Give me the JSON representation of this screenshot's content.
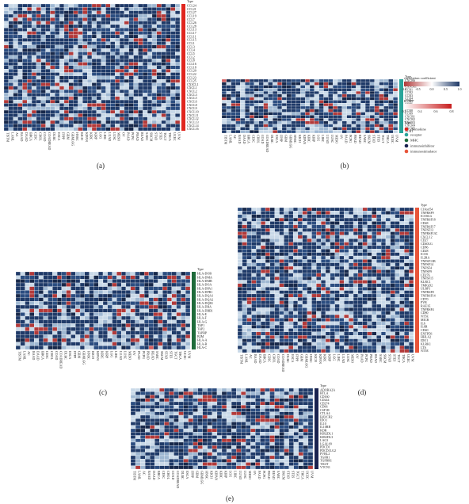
{
  "columns": [
    "TISTM",
    "LAML",
    "AC",
    "BAAD",
    "DAAD",
    "BRCA",
    "CESC",
    "CHOL",
    "COAD",
    "COADREAD",
    "DLBC",
    "ESCA",
    "FPPP",
    "GBM",
    "GBMLGG",
    "HNSC",
    "KICH",
    "KIPAN",
    "KIRC",
    "KIRP",
    "LGG",
    "LIHC",
    "LUAD",
    "LUSC",
    "MESO",
    "OV",
    "PAAD",
    "PCPG",
    "PRAD",
    "READ",
    "SARC",
    "SKCM",
    "STAD",
    "STES",
    "TGCT",
    "THCA",
    "UCEC",
    "UVM"
  ],
  "type_label": "Type",
  "panels": [
    {
      "letter": "(a)",
      "type_color": "#e0261f",
      "rows": [
        "CCL24",
        "CCL21",
        "CCL27",
        "CCL19",
        "CCL7",
        "CCL26",
        "CCL28",
        "CCL13",
        "CCL17",
        "CCL11",
        "CCL15",
        "CCL1",
        "CCL3",
        "CCL4",
        "CCL5",
        "CCL2",
        "CCL8",
        "CCL16",
        "CCL18",
        "CCL20",
        "CCL22",
        "CCL23",
        "CCL25",
        "CX3CL1",
        "CXCL1",
        "CXCL2",
        "CXCL3",
        "CXCL5",
        "CXCL6",
        "CXCL8",
        "CXCL9",
        "CXCL10",
        "CXCL11",
        "CXCL12",
        "CXCL13",
        "CXCL14",
        "CXCL16"
      ]
    },
    {
      "letter": "(b)",
      "type_color": "#2aa59a",
      "rows": [
        "CXCR6",
        "CCR10",
        "CX3CR1",
        "CCR1",
        "CCR2",
        "CCR3",
        "CCR4",
        "CCR5",
        "CCR6",
        "CCR7",
        "CCR8",
        "CCR9",
        "CXCR1",
        "CXCR2",
        "CXCR3",
        "CXCR4",
        "CXCR5",
        "XCR1"
      ]
    },
    {
      "letter": "(c)",
      "type_color": "#1e6b3a",
      "rows": [
        "HLA-DOB",
        "HLA-DMA",
        "HLA-DMB",
        "HLA-DOA",
        "HLA-DPA1",
        "HLA-DPB1",
        "HLA-DQA1",
        "HLA-DQA2",
        "HLA-DQB1",
        "HLA-DRA",
        "HLA-DRB1",
        "HLA-E",
        "HLA-F",
        "HLA-G",
        "TAP1",
        "TAP2",
        "TAPBP",
        "B2M",
        "HLA-A",
        "HLA-B",
        "HLA-C"
      ]
    },
    {
      "letter": "(d)",
      "type_color": "#e8553a",
      "rows": [
        "C10orf54",
        "TNFRSF9",
        "ICOSLG",
        "TNFRSF18",
        "CD48",
        "TNFRSF17",
        "TNFSF13",
        "TNFRSF13C",
        "CXCL12",
        "CD27",
        "CD40LG",
        "CD86",
        "CD28",
        "ICOS",
        "IL2RA",
        "TNFSF13B",
        "TNFSF14",
        "TNFSF4",
        "TNFSF9",
        "CD276",
        "TNFSF15",
        "KLRC1",
        "TMIGD2",
        "ULBP1",
        "TNFRSF8",
        "TNFRSF14",
        "CD70",
        "PVR",
        "RAE1E",
        "TNFRSF4",
        "CD80",
        "NT5E",
        "MICB",
        "IL6",
        "IL6R",
        "CD40",
        "ENTPD1",
        "HHLA2",
        "IDO1",
        "KLRK1",
        "LTA",
        "NT5E"
      ]
    },
    {
      "letter": "(e)",
      "type_color": "#1a2350",
      "rows": [
        "ADORA2A",
        "BTLA",
        "CD160",
        "CD244",
        "CD274",
        "CD96",
        "CSF1R",
        "CTLA4",
        "HAVCR2",
        "IDO1",
        "IL10",
        "IL10RB",
        "KDR",
        "KIR2DL1",
        "KIR2DL3",
        "LAG3",
        "LGALS9",
        "PDCD1",
        "PDCD1LG2",
        "PVRL2",
        "TGFB1",
        "TGFBR1",
        "TIGIT",
        "VTCN1"
      ]
    }
  ],
  "legend": {
    "cor_title": "correlation coefficient",
    "cor_ticks": [
      "-1.0",
      "-0.5",
      "0.0",
      "0.5",
      "1.0"
    ],
    "p_title": "pValue",
    "p_ticks": [
      "0.2",
      "0.4",
      "0.6",
      "0.8"
    ],
    "type_title": "Type",
    "types": [
      {
        "name": "chemokine",
        "color": "#e0261f"
      },
      {
        "name": "receptor",
        "color": "#2aa59a"
      },
      {
        "name": "MHC",
        "color": "#1e6b3a"
      },
      {
        "name": "immunoinhibitor",
        "color": "#1a2350"
      },
      {
        "name": "immunostimulator",
        "color": "#e8553a"
      }
    ]
  }
}
